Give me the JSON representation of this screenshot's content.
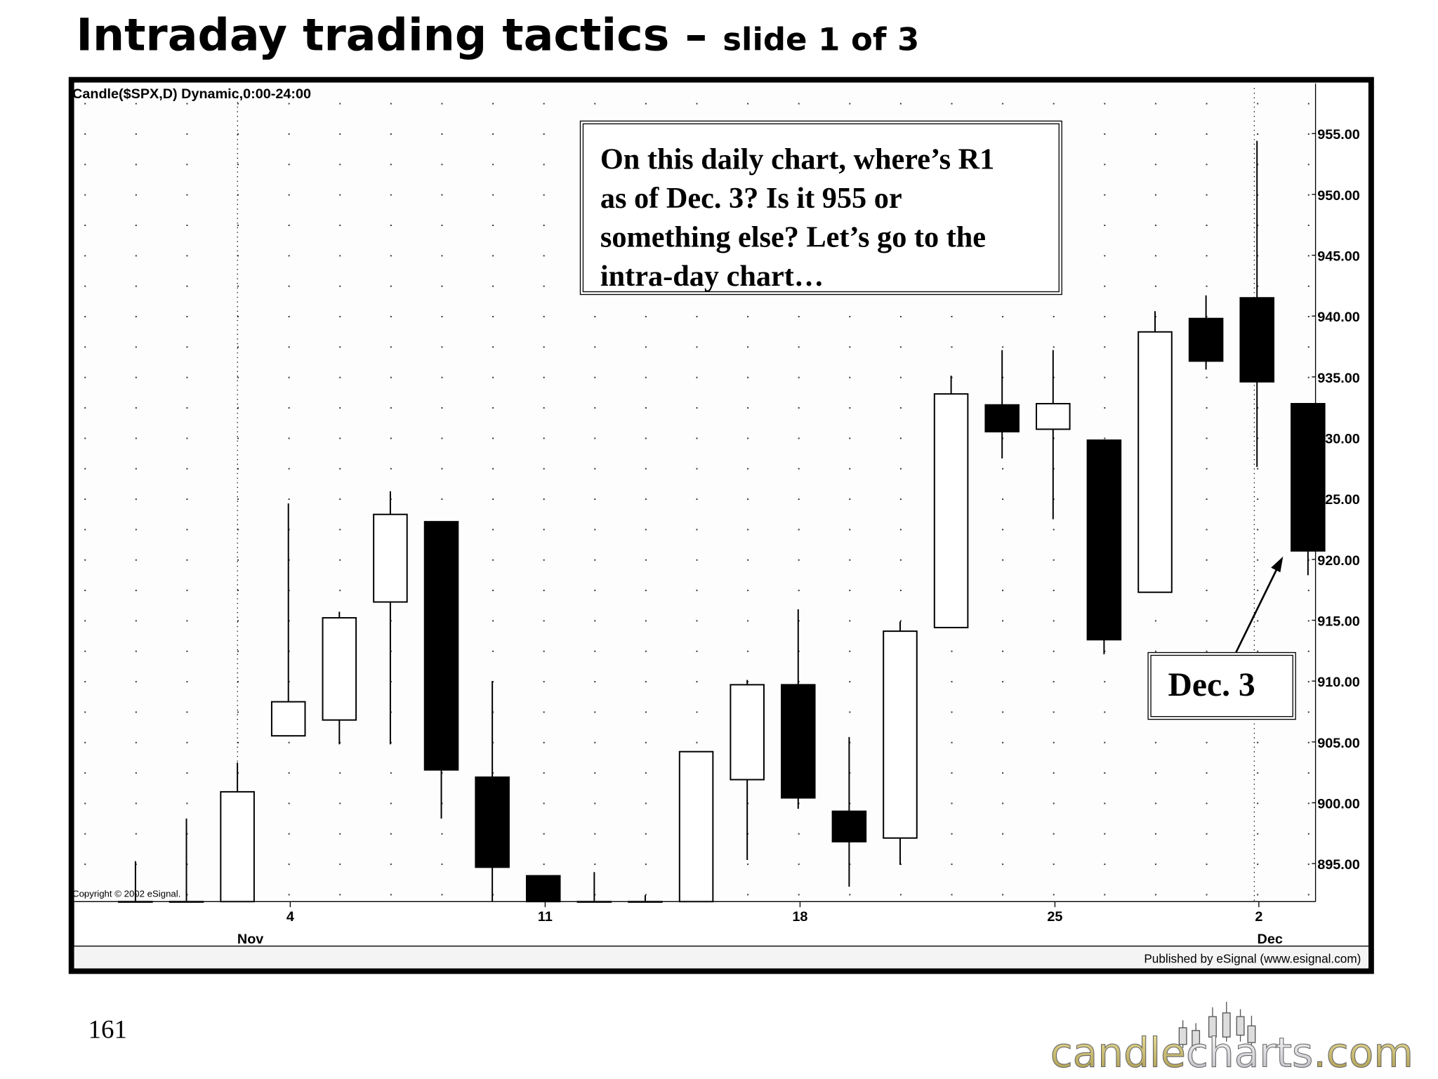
{
  "slide": {
    "title": "Intraday trading tactics –",
    "subtitle": "slide 1 of 3",
    "page_number": "161"
  },
  "chart_header": "Candle($SPX,D) Dynamic,0:00-24:00",
  "copyright": "Copyright © 2002 eSignal.",
  "publisher": "Published by eSignal (www.esignal.com)",
  "annotation": {
    "lines": [
      "On this daily chart, where’s R1",
      "as of Dec. 3? Is it 955 or",
      "something else? Let’s go to the",
      "intra-day chart…"
    ]
  },
  "callout": {
    "label": "Dec. 3"
  },
  "logo": {
    "part1": "candle",
    "part2": "charts",
    "part3": ".com"
  },
  "chart_data": {
    "type": "candlestick",
    "symbol": "$SPX",
    "ylim": [
      892,
      958
    ],
    "y_ticks": [
      "955.00",
      "950.00",
      "945.00",
      "940.00",
      "935.00",
      "930.00",
      "925.00",
      "920.00",
      "915.00",
      "910.00",
      "905.00",
      "900.00",
      "895.00"
    ],
    "x_tick_labels": [
      {
        "label": "4",
        "index": 3
      },
      {
        "label": "11",
        "index": 8
      },
      {
        "label": "18",
        "index": 13
      },
      {
        "label": "25",
        "index": 18
      },
      {
        "label": "2",
        "index": 22
      }
    ],
    "month_labels": [
      {
        "label": "Nov",
        "index": 2
      },
      {
        "label": "Dec",
        "index": 22
      }
    ],
    "grid": "dotted",
    "colors": {
      "up": "#ffffff",
      "down": "#000000"
    },
    "candles": [
      {
        "date": "Oct 30",
        "open": 890.0,
        "high": 895.2,
        "low": 886.0,
        "close": 890.0
      },
      {
        "date": "Oct 31",
        "open": 889.0,
        "high": 898.7,
        "low": 886.0,
        "close": 889.0
      },
      {
        "date": "Nov 1",
        "open": 889.0,
        "high": 903.3,
        "low": 886.0,
        "close": 900.9
      },
      {
        "date": "Nov 4",
        "open": 905.5,
        "high": 924.6,
        "low": 905.5,
        "close": 908.3
      },
      {
        "date": "Nov 5",
        "open": 906.8,
        "high": 915.7,
        "low": 904.8,
        "close": 915.2
      },
      {
        "date": "Nov 6",
        "open": 916.5,
        "high": 925.6,
        "low": 904.8,
        "close": 923.7
      },
      {
        "date": "Nov 7",
        "open": 923.1,
        "high": 923.1,
        "low": 898.7,
        "close": 902.7
      },
      {
        "date": "Nov 8",
        "open": 902.1,
        "high": 910.0,
        "low": 890.0,
        "close": 894.7
      },
      {
        "date": "Nov 11",
        "open": 894.0,
        "high": 894.0,
        "low": 889.0,
        "close": 890.0
      },
      {
        "date": "Nov 12",
        "open": 890.0,
        "high": 894.3,
        "low": 888.0,
        "close": 890.5
      },
      {
        "date": "Nov 13",
        "open": 890.5,
        "high": 892.4,
        "low": 888.0,
        "close": 891.0
      },
      {
        "date": "Nov 14",
        "open": 891.0,
        "high": 904.2,
        "low": 889.0,
        "close": 904.2
      },
      {
        "date": "Nov 15",
        "open": 901.9,
        "high": 910.1,
        "low": 895.3,
        "close": 909.7
      },
      {
        "date": "Nov 18",
        "open": 909.7,
        "high": 915.9,
        "low": 899.5,
        "close": 900.4
      },
      {
        "date": "Nov 19",
        "open": 899.3,
        "high": 905.4,
        "low": 893.1,
        "close": 896.8
      },
      {
        "date": "Nov 20",
        "open": 897.1,
        "high": 914.9,
        "low": 894.9,
        "close": 914.1
      },
      {
        "date": "Nov 21",
        "open": 914.4,
        "high": 935.1,
        "low": 914.4,
        "close": 933.6
      },
      {
        "date": "Nov 22",
        "open": 932.7,
        "high": 937.2,
        "low": 928.3,
        "close": 930.5
      },
      {
        "date": "Nov 25",
        "open": 930.7,
        "high": 937.2,
        "low": 923.3,
        "close": 932.8
      },
      {
        "date": "Nov 26",
        "open": 929.8,
        "high": 929.8,
        "low": 912.2,
        "close": 913.4
      },
      {
        "date": "Nov 27",
        "open": 917.3,
        "high": 940.4,
        "low": 917.3,
        "close": 938.7
      },
      {
        "date": "Nov 29",
        "open": 939.8,
        "high": 941.7,
        "low": 935.6,
        "close": 936.3
      },
      {
        "date": "Dec 2",
        "open": 941.5,
        "high": 954.4,
        "low": 927.6,
        "close": 934.6
      },
      {
        "date": "Dec 3",
        "open": 932.8,
        "high": 932.8,
        "low": 918.7,
        "close": 920.7
      }
    ]
  }
}
